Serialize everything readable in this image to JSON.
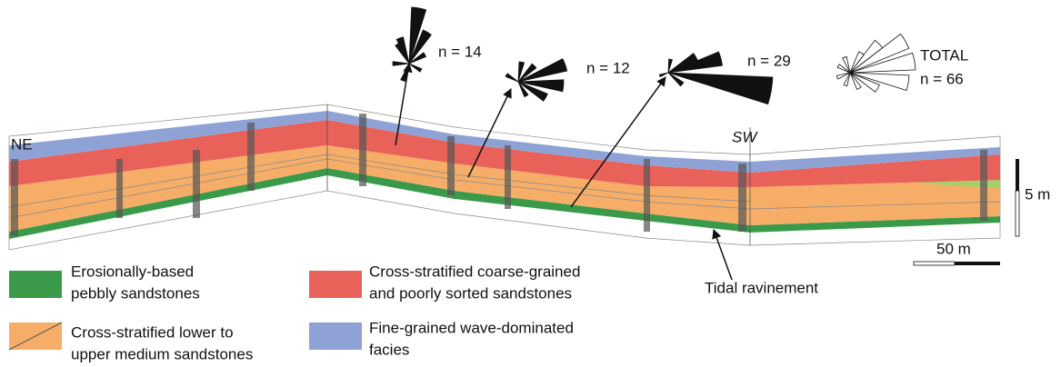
{
  "orientation": {
    "left": "NE",
    "right": "SW"
  },
  "rose_diagrams": [
    {
      "label": "n = 14"
    },
    {
      "label": "n = 12"
    },
    {
      "label": "n = 29"
    },
    {
      "title": "TOTAL",
      "label": "n = 66"
    }
  ],
  "scale_bars": {
    "vertical": "5 m",
    "horizontal": "50 m"
  },
  "annotation": "Tidal ravinement",
  "legend": [
    {
      "lines": [
        "Erosionally-based",
        "pebbly sandstones"
      ]
    },
    {
      "lines": [
        "Cross-stratified lower to",
        "upper medium sandstones"
      ]
    },
    {
      "lines": [
        "Cross-stratified coarse-grained",
        "and poorly sorted sandstones"
      ]
    },
    {
      "lines": [
        "Fine-grained wave-dominated",
        "facies"
      ]
    }
  ]
}
